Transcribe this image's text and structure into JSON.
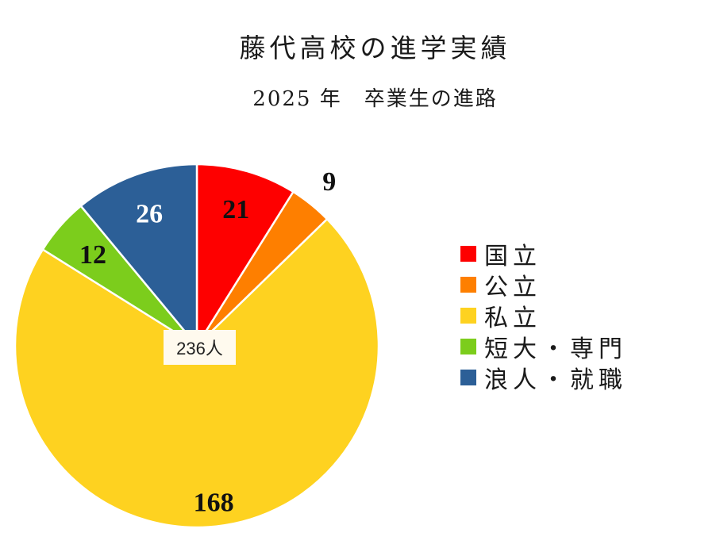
{
  "chart_data": {
    "type": "pie",
    "title": "藤代高校の進学実績",
    "subtitle": "2025 年　卒業生の進路",
    "total_label": "236人",
    "categories": [
      "国立",
      "公立",
      "私立",
      "短大・専門",
      "浪人・就職"
    ],
    "values": [
      21,
      9,
      168,
      12,
      26
    ],
    "value_labels": [
      "21",
      "9",
      "168",
      "12",
      "26"
    ],
    "colors": [
      "#fe0000",
      "#fe7f00",
      "#fed220",
      "#7ccd1c",
      "#2c5f97"
    ],
    "label_colors": [
      "#111111",
      "#111111",
      "#111111",
      "#111111",
      "#ffffff"
    ],
    "start_angle_deg": 0,
    "direction": "clockwise",
    "legend_position": "right"
  }
}
